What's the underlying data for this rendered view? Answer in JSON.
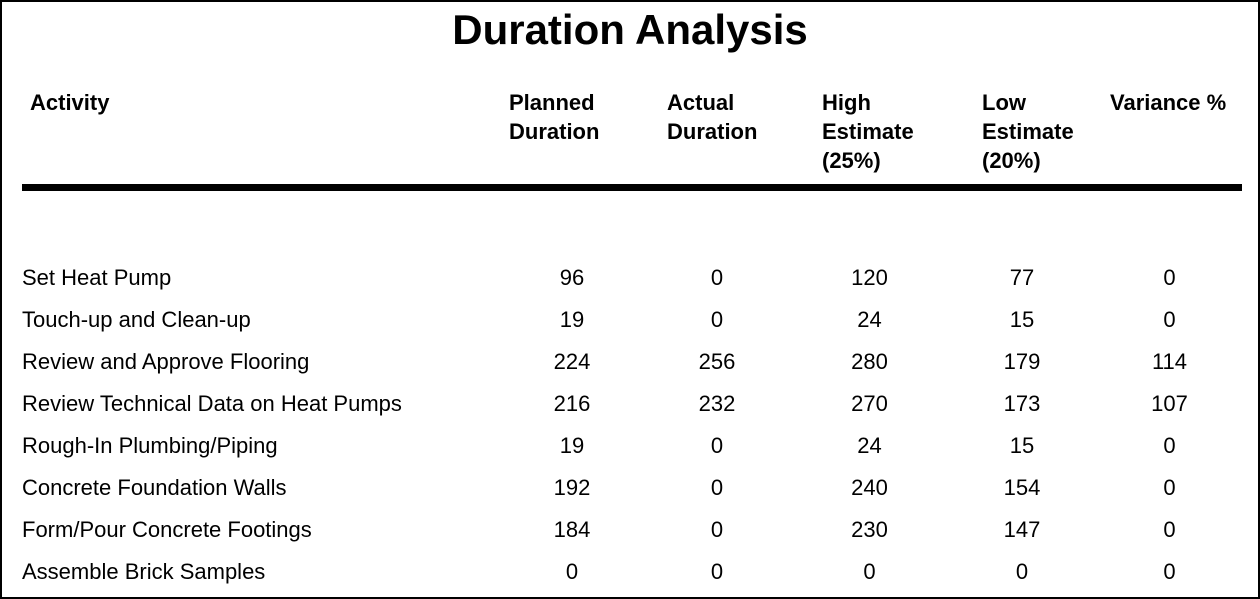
{
  "report": {
    "title": "Duration Analysis",
    "colors": {
      "text": "#000000",
      "background": "#ffffff",
      "header_rule": "#000000",
      "page_border": "#000000"
    }
  },
  "table": {
    "columns": {
      "activity": "Activity",
      "planned": "Planned\nDuration",
      "actual": "Actual\nDuration",
      "high": "High\nEstimate\n(25%)",
      "low": "Low\nEstimate\n(20%)",
      "variance": "Variance %"
    },
    "rows": [
      {
        "activity": "Set Heat Pump",
        "planned": "96",
        "actual": "0",
        "high": "120",
        "low": "77",
        "variance": "0"
      },
      {
        "activity": "Touch-up and Clean-up",
        "planned": "19",
        "actual": "0",
        "high": "24",
        "low": "15",
        "variance": "0"
      },
      {
        "activity": "Review and Approve Flooring",
        "planned": "224",
        "actual": "256",
        "high": "280",
        "low": "179",
        "variance": "114"
      },
      {
        "activity": "Review Technical Data on Heat Pumps",
        "planned": "216",
        "actual": "232",
        "high": "270",
        "low": "173",
        "variance": "107"
      },
      {
        "activity": "Rough-In Plumbing/Piping",
        "planned": "19",
        "actual": "0",
        "high": "24",
        "low": "15",
        "variance": "0"
      },
      {
        "activity": "Concrete Foundation Walls",
        "planned": "192",
        "actual": "0",
        "high": "240",
        "low": "154",
        "variance": "0"
      },
      {
        "activity": "Form/Pour Concrete Footings",
        "planned": "184",
        "actual": "0",
        "high": "230",
        "low": "147",
        "variance": "0"
      },
      {
        "activity": "Assemble Brick Samples",
        "planned": "0",
        "actual": "0",
        "high": "0",
        "low": "0",
        "variance": "0"
      }
    ]
  }
}
